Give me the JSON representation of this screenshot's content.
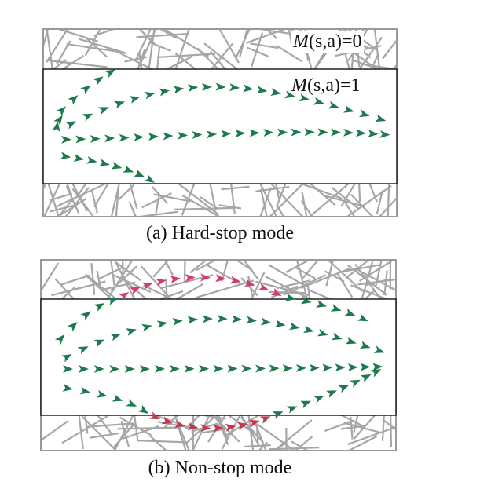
{
  "panels": [
    {
      "id": "a",
      "caption": "(a) Hard-stop mode",
      "label_blocked_m": "M",
      "label_blocked_args": "(s,a)",
      "label_blocked_value": "=0",
      "label_free_m": "M",
      "label_free_args": "(s,a)",
      "label_free_value": "=1"
    },
    {
      "id": "b",
      "caption": "(b) Non-stop mode"
    }
  ],
  "colors": {
    "valid_arrow": "#1e7a4a",
    "violation_arrow": "#d63a6a",
    "violation_arrow_alt": "#c23a4e",
    "obstacle_line": "#a6a6a6",
    "border": "#9a9a9a",
    "free_border": "#111111"
  }
}
